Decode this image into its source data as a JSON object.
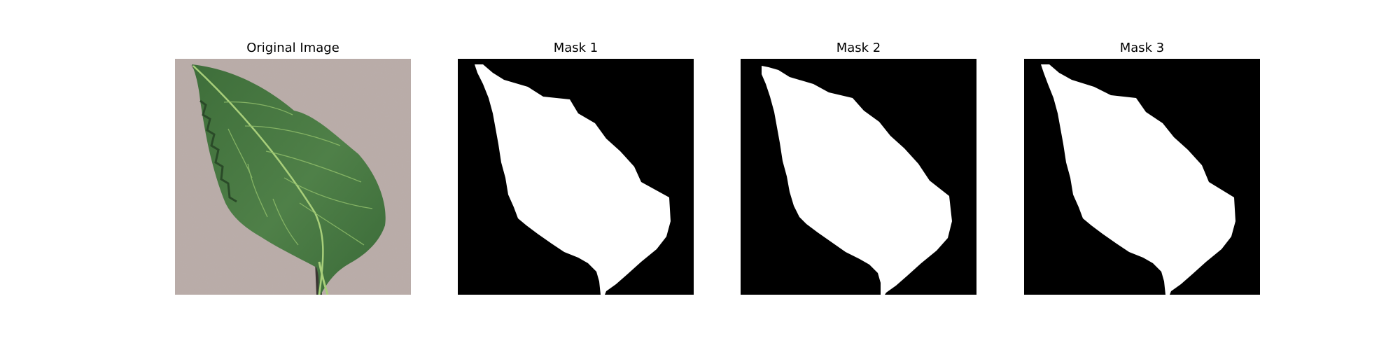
{
  "figure": {
    "panels": [
      {
        "title": "Original Image",
        "kind": "photo",
        "subject": "leaf"
      },
      {
        "title": "Mask 1",
        "kind": "mask"
      },
      {
        "title": "Mask 2",
        "kind": "mask"
      },
      {
        "title": "Mask 3",
        "kind": "mask"
      }
    ]
  },
  "colors": {
    "photo_background": "#b8aaa6",
    "leaf_main": "#4a7a44",
    "leaf_dark": "#2f5a2e",
    "leaf_vein": "#a8cf7a",
    "leaf_shadow": "#3a3632",
    "mask_background": "#000000",
    "mask_foreground": "#ffffff"
  }
}
